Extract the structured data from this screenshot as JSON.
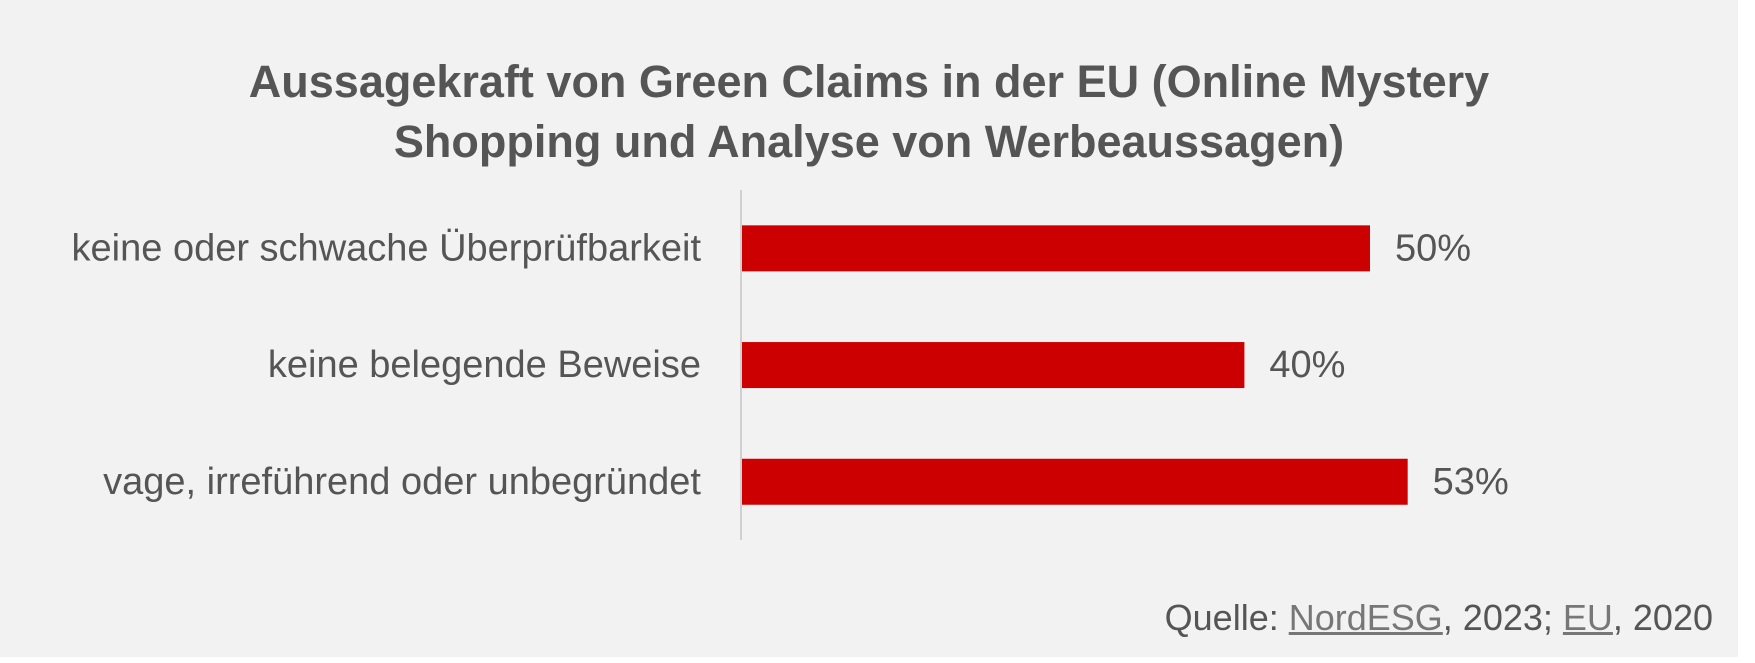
{
  "chart_data": {
    "type": "bar",
    "orientation": "horizontal",
    "title_lines": [
      "Aussagekraft von Green Claims in der EU (Online Mystery",
      "Shopping und Analyse von Werbeaussagen)"
    ],
    "categories": [
      "keine oder schwache Überprüfbarkeit",
      "keine belegende Beweise",
      "vage, irreführend oder unbegründet"
    ],
    "values": [
      50,
      40,
      53
    ],
    "value_labels": [
      "50%",
      "40%",
      "53%"
    ],
    "unit": "%",
    "xlim": [
      0,
      55
    ],
    "grid": false,
    "legend": "none",
    "bar_color": "#cc0000",
    "axis_color": "#d0d0d0",
    "text_color": "#555555"
  },
  "source": {
    "prefix": "Quelle: ",
    "link1": "NordESG",
    "mid": ", 2023; ",
    "link2": "EU",
    "suffix": ", 2020"
  }
}
